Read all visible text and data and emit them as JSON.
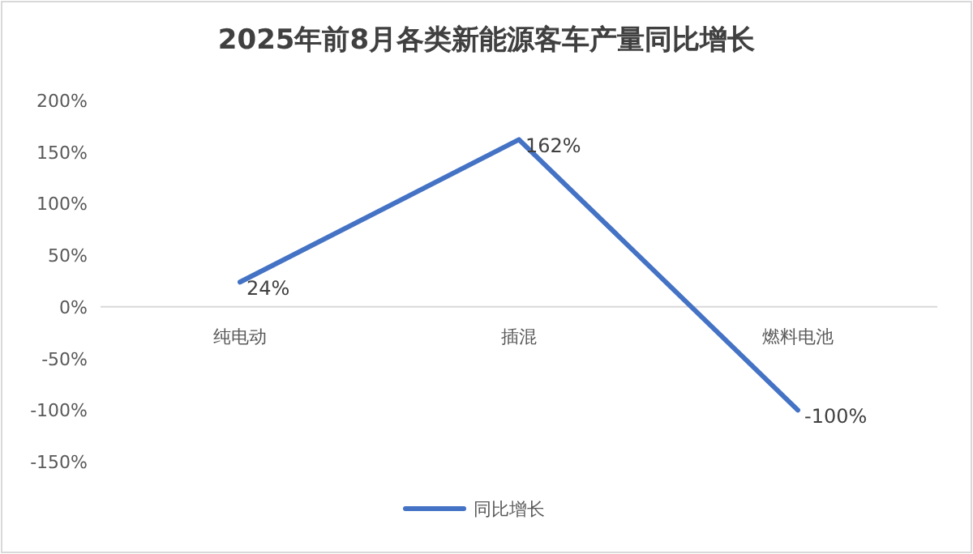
{
  "chart_data": {
    "type": "line",
    "title": "2025年前8月各类新能源客车产量同比增长",
    "categories": [
      "纯电动",
      "插混",
      "燃料电池"
    ],
    "series": [
      {
        "name": "同比增长",
        "color": "#4472c4",
        "values": [
          24,
          162,
          -100
        ],
        "value_labels": [
          "24%",
          "162%",
          "-100%"
        ]
      }
    ],
    "ylim": [
      -150,
      200
    ],
    "yticks": [
      {
        "value": -150,
        "label": "-150%"
      },
      {
        "value": -100,
        "label": "-100%"
      },
      {
        "value": -50,
        "label": "-50%"
      },
      {
        "value": 0,
        "label": "0%"
      },
      {
        "value": 50,
        "label": "50%"
      },
      {
        "value": 100,
        "label": "100%"
      },
      {
        "value": 150,
        "label": "150%"
      },
      {
        "value": 200,
        "label": "200%"
      }
    ],
    "grid": false,
    "legend": "bottom",
    "marker": "none",
    "line_style": "solid"
  }
}
